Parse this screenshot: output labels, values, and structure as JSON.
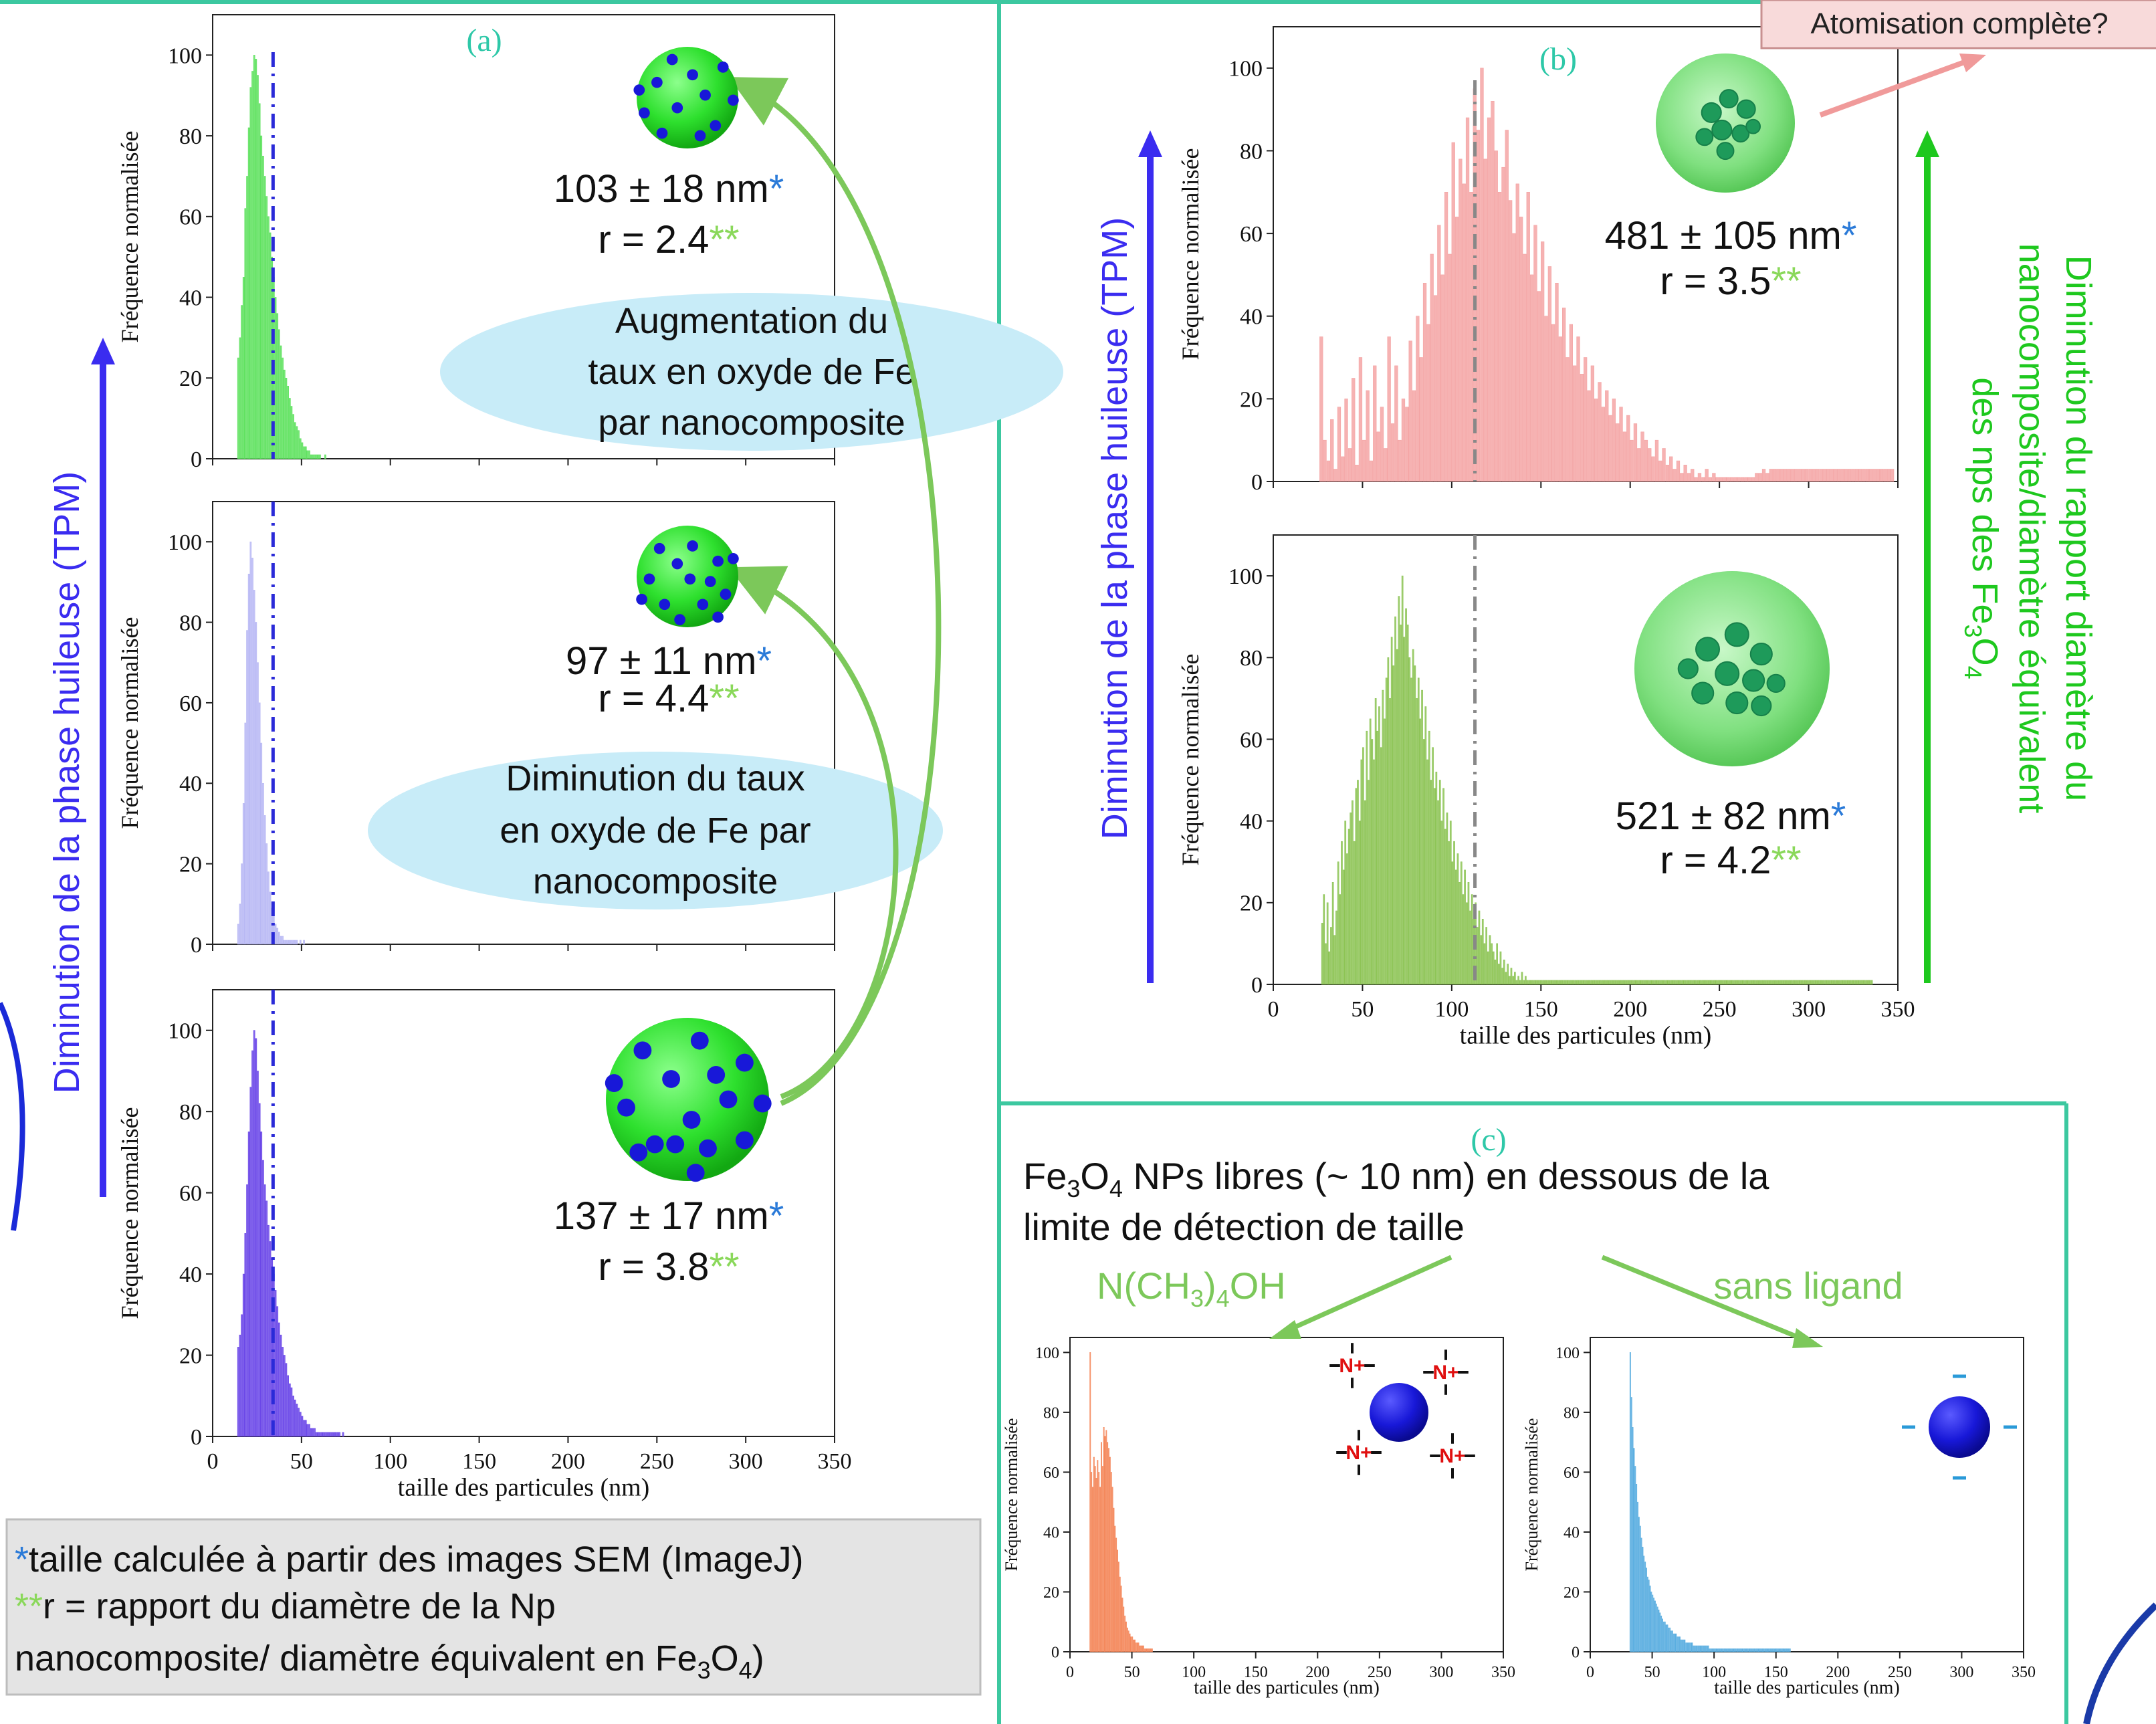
{
  "panel_labels": {
    "a": "(a)",
    "b": "(b)",
    "c": "(c)"
  },
  "side_labels": {
    "left": "Diminution de la phase huileuse (TPM)",
    "middle": "Diminution de la phase huileuse (TPM)",
    "right": [
      "Diminution du rapport diamètre du",
      "nanocomposite/diamètre équivalent",
      "des nps des Fe",
      "3",
      "O",
      "4"
    ]
  },
  "atomisation_label": "Atomisation complète?",
  "bubbles": {
    "top": [
      "Augmentation  du",
      "taux en oxyde de Fe",
      "par nanocomposite"
    ],
    "bottom": [
      "Diminution du taux",
      "en oxyde de Fe par",
      "nanocomposite"
    ]
  },
  "annotations": {
    "a1": {
      "size": "103 ± 18 nm",
      "r": "r = 2.4"
    },
    "a2": {
      "size": "97 ± 11 nm",
      "r": "r = 4.4"
    },
    "a3": {
      "size": "137 ± 17 nm",
      "r": "r = 3.8"
    },
    "b1": {
      "size": "481 ± 105 nm",
      "r": "r = 3.5"
    },
    "b2": {
      "size": "521 ± 82 nm",
      "r": "r = 4.2"
    },
    "star1": "*",
    "star2": "**"
  },
  "c_text": {
    "line1_pre": "Fe",
    "line1_sub1": "3",
    "line1_mid": "O",
    "line1_sub2": "4",
    "line1_post": " NPs libres (~ 10 nm) en dessous de la",
    "line2": "limite de détection de taille",
    "left_label": {
      "pre": "N(CH",
      "sub1": "3",
      "mid": ")",
      "sub2": "4",
      "post": "OH"
    },
    "right_label": "sans ligand"
  },
  "legend_box": {
    "line1": "taille calculée à partir des images SEM (ImageJ)",
    "line2": "r = rapport du diamètre de la Np",
    "line3_pre": "nanocomposite/ diamètre équivalent en Fe",
    "line3_sub1": "3",
    "line3_mid": "O",
    "line3_sub2": "4",
    "line3_post": ")"
  },
  "icons": [
    "nanocomposite-sphere-icon",
    "cluster-sphere-icon",
    "charged-nanoparticle-icon",
    "bare-nanoparticle-icon",
    "curved-arrow-icon"
  ],
  "colors": {
    "panel_border": "#3cc8a0",
    "green_bars": "#5fe25f",
    "lavender_bars": "#b8b8f4",
    "violet_bars": "#6a46e8",
    "pink_bars": "#f4a4a4",
    "olive_bars": "#8dc455",
    "orange_bars": "#f4875a",
    "blue_bars": "#5aaee0",
    "blue_text": "#3a2cf0",
    "green_text": "#1ec81e",
    "teal_label": "#2ec8a8",
    "bubble": "#c8ecf8",
    "legend_box": "#e4e4e4"
  },
  "chart_data": [
    {
      "id": "a1",
      "type": "bar",
      "title": "",
      "xlabel": "",
      "ylabel": "Fréquence normalisée",
      "xlim": [
        0,
        350
      ],
      "ylim": [
        0,
        110
      ],
      "xticks": [
        "0",
        "50",
        "100",
        "150",
        "200",
        "250",
        "300",
        "350"
      ],
      "xticks_shown": false,
      "yticks": [
        "0",
        "20",
        "40",
        "60",
        "80",
        "100"
      ],
      "bin_width": 1,
      "bin_start": 14,
      "values": [
        25,
        30,
        38,
        45,
        62,
        70,
        82,
        92,
        96,
        100,
        99,
        95,
        88,
        80,
        75,
        70,
        65,
        60,
        56,
        50,
        45,
        40,
        36,
        32,
        28,
        25,
        22,
        20,
        18,
        15,
        13,
        11,
        9,
        8,
        7,
        5,
        4,
        3,
        3,
        2,
        2,
        1,
        1,
        1,
        1,
        1,
        1,
        0,
        0,
        1
      ],
      "mean_line_x": 34
    },
    {
      "id": "a2",
      "type": "bar",
      "title": "",
      "xlabel": "",
      "ylabel": "Fréquence normalisée",
      "xlim": [
        0,
        350
      ],
      "ylim": [
        0,
        110
      ],
      "xticks": [
        "0",
        "50",
        "100",
        "150",
        "200",
        "250",
        "300",
        "350"
      ],
      "xticks_shown": false,
      "yticks": [
        "0",
        "20",
        "40",
        "60",
        "80",
        "100"
      ],
      "bin_width": 1,
      "bin_start": 14,
      "values": [
        5,
        10,
        20,
        35,
        55,
        78,
        92,
        100,
        96,
        88,
        80,
        70,
        60,
        50,
        40,
        32,
        25,
        18,
        13,
        9,
        7,
        5,
        4,
        3,
        2,
        2,
        1,
        1,
        1,
        1,
        1,
        1,
        1,
        1,
        0,
        1,
        0,
        1
      ],
      "mean_line_x": 34
    },
    {
      "id": "a3",
      "type": "bar",
      "title": "",
      "xlabel": "taille des particules (nm)",
      "ylabel": "Fréquence normalisée",
      "xlim": [
        0,
        350
      ],
      "ylim": [
        0,
        110
      ],
      "xticks": [
        "0",
        "50",
        "100",
        "150",
        "200",
        "250",
        "300",
        "350"
      ],
      "xticks_shown": true,
      "yticks": [
        "0",
        "20",
        "40",
        "60",
        "80",
        "100"
      ],
      "bin_width": 1,
      "bin_start": 14,
      "values": [
        22,
        25,
        30,
        40,
        50,
        62,
        75,
        86,
        95,
        100,
        98,
        90,
        82,
        75,
        68,
        62,
        58,
        52,
        48,
        44,
        40,
        36,
        32,
        28,
        25,
        22,
        20,
        18,
        15,
        13,
        12,
        10,
        9,
        8,
        7,
        6,
        5,
        4,
        4,
        3,
        3,
        2,
        2,
        2,
        1,
        1,
        1,
        1,
        1,
        1,
        1,
        1,
        1,
        1,
        1,
        1,
        1,
        1,
        0,
        1
      ],
      "mean_line_x": 34
    },
    {
      "id": "b1",
      "type": "bar",
      "title": "",
      "xlabel": "",
      "ylabel": "Fréquence normalisée",
      "xlim": [
        0,
        350
      ],
      "ylim": [
        0,
        110
      ],
      "xticks": [
        "0",
        "50",
        "100",
        "150",
        "200",
        "250",
        "300",
        "350"
      ],
      "xticks_shown": false,
      "yticks": [
        "0",
        "20",
        "40",
        "60",
        "80",
        "100"
      ],
      "bin_width": 2,
      "bin_start": 26,
      "values": [
        35,
        10,
        5,
        15,
        3,
        18,
        6,
        20,
        8,
        25,
        4,
        30,
        10,
        22,
        5,
        28,
        12,
        18,
        8,
        35,
        14,
        28,
        10,
        20,
        18,
        34,
        22,
        40,
        30,
        48,
        38,
        55,
        45,
        62,
        50,
        70,
        55,
        82,
        64,
        78,
        72,
        88,
        70,
        95,
        85,
        100,
        78,
        88,
        92,
        80,
        70,
        76,
        85,
        68,
        60,
        72,
        64,
        55,
        70,
        50,
        62,
        46,
        58,
        40,
        52,
        38,
        48,
        35,
        42,
        30,
        38,
        28,
        35,
        26,
        30,
        22,
        28,
        20,
        24,
        18,
        22,
        16,
        20,
        14,
        18,
        12,
        16,
        10,
        14,
        8,
        12,
        10,
        8,
        6,
        10,
        5,
        8,
        4,
        6,
        3,
        5,
        2,
        4,
        2,
        3,
        1,
        2,
        1,
        3,
        1,
        2,
        1,
        1,
        1,
        1,
        1,
        1,
        1,
        1,
        1,
        1,
        1,
        2,
        2,
        3,
        2,
        3,
        3,
        3,
        3,
        3,
        3,
        3,
        3,
        3,
        3,
        3,
        3,
        3,
        3,
        3,
        3,
        3,
        3,
        3,
        3,
        3,
        3,
        3,
        3,
        3,
        3,
        3,
        3,
        3,
        3,
        3,
        3,
        3,
        3,
        3
      ],
      "mean_line_x": 113
    },
    {
      "id": "b2",
      "type": "bar",
      "title": "",
      "xlabel": "taille des particules (nm)",
      "ylabel": "Fréquence normalisée",
      "xlim": [
        0,
        350
      ],
      "ylim": [
        0,
        110
      ],
      "xticks": [
        "0",
        "50",
        "100",
        "150",
        "200",
        "250",
        "300",
        "350"
      ],
      "xticks_shown": true,
      "yticks": [
        "0",
        "20",
        "40",
        "60",
        "80",
        "100"
      ],
      "bin_width": 1,
      "bin_start": 27,
      "values": [
        15,
        22,
        10,
        20,
        8,
        14,
        25,
        12,
        18,
        30,
        22,
        35,
        28,
        40,
        32,
        38,
        42,
        45,
        35,
        48,
        50,
        40,
        55,
        58,
        45,
        62,
        50,
        65,
        60,
        55,
        70,
        62,
        68,
        58,
        72,
        65,
        75,
        80,
        70,
        85,
        78,
        90,
        82,
        95,
        88,
        100,
        85,
        92,
        88,
        80,
        75,
        82,
        78,
        70,
        75,
        65,
        72,
        60,
        68,
        55,
        62,
        50,
        58,
        48,
        52,
        45,
        50,
        40,
        48,
        38,
        42,
        35,
        40,
        30,
        35,
        28,
        32,
        25,
        30,
        22,
        28,
        20,
        25,
        18,
        22,
        16,
        20,
        14,
        18,
        12,
        16,
        10,
        14,
        8,
        12,
        10,
        8,
        6,
        10,
        5,
        8,
        4,
        6,
        3,
        5,
        2,
        4,
        2,
        3,
        1,
        2,
        1,
        3,
        1,
        2,
        1,
        1,
        1,
        1,
        1,
        1,
        1,
        1,
        1,
        1,
        1,
        1,
        1,
        1,
        1,
        1,
        1,
        1,
        1,
        1,
        1,
        1,
        1,
        1,
        1,
        1,
        1,
        1,
        1,
        1,
        1,
        1,
        1,
        1,
        1,
        1,
        1,
        1,
        1,
        1,
        1,
        1,
        1,
        1,
        1,
        1,
        1,
        1,
        1,
        1,
        1,
        1,
        1,
        1,
        1,
        1,
        1,
        1,
        1,
        1,
        1,
        1,
        1,
        1,
        1,
        1,
        1,
        1,
        1,
        1,
        1,
        1,
        1,
        1,
        1,
        1,
        1,
        1,
        1,
        1,
        1,
        1,
        1,
        1,
        1,
        1,
        1,
        1,
        1,
        1,
        1,
        1,
        1,
        1,
        1,
        1,
        1,
        1,
        1,
        1,
        1,
        1,
        1,
        1,
        1,
        1,
        1,
        1,
        1,
        1,
        1,
        1,
        1,
        1,
        1,
        1,
        1,
        1,
        1,
        1,
        1,
        1,
        1,
        1,
        1,
        1,
        1,
        1,
        1,
        1,
        1,
        1,
        1,
        1,
        1,
        1,
        1,
        1,
        1,
        1,
        1,
        1,
        1,
        1,
        1,
        1,
        1,
        1,
        1,
        1,
        1,
        1,
        1,
        1,
        1,
        1,
        1,
        1,
        1,
        1,
        1,
        1,
        1,
        1,
        1,
        1,
        1,
        1,
        1,
        1,
        1,
        1,
        1,
        1,
        1,
        1,
        1,
        1,
        1,
        1,
        1,
        1,
        1,
        1,
        1,
        1,
        1,
        1,
        1,
        1,
        1,
        1,
        1,
        1
      ],
      "mean_line_x": 113
    },
    {
      "id": "c1",
      "type": "bar",
      "title": "",
      "xlabel": "taille des particules (nm)",
      "ylabel": "Fréquence normalisée",
      "xlim": [
        0,
        350
      ],
      "ylim": [
        0,
        105
      ],
      "xticks": [
        "0",
        "50",
        "100",
        "150",
        "200",
        "250",
        "300",
        "350"
      ],
      "xticks_shown": true,
      "yticks": [
        "0",
        "20",
        "40",
        "60",
        "80",
        "100"
      ],
      "bin_width": 1,
      "bin_start": 16,
      "values": [
        100,
        60,
        55,
        65,
        62,
        58,
        64,
        60,
        55,
        70,
        62,
        75,
        72,
        74,
        70,
        68,
        65,
        60,
        55,
        48,
        42,
        38,
        34,
        30,
        25,
        22,
        18,
        15,
        12,
        10,
        8,
        7,
        6,
        5,
        5,
        4,
        4,
        3,
        3,
        3,
        2,
        2,
        2,
        2,
        1,
        1,
        1,
        1,
        1,
        1,
        1
      ]
    },
    {
      "id": "c2",
      "type": "bar",
      "title": "",
      "xlabel": "taille des particules (nm)",
      "ylabel": "Fréquence normalisée",
      "xlim": [
        0,
        350
      ],
      "ylim": [
        0,
        105
      ],
      "xticks": [
        "0",
        "50",
        "100",
        "150",
        "200",
        "250",
        "300",
        "350"
      ],
      "xticks_shown": true,
      "yticks": [
        "0",
        "20",
        "40",
        "60",
        "80",
        "100"
      ],
      "bin_width": 1,
      "bin_start": 32,
      "values": [
        100,
        85,
        75,
        68,
        62,
        56,
        50,
        45,
        42,
        38,
        35,
        32,
        30,
        28,
        25,
        24,
        22,
        20,
        19,
        18,
        17,
        16,
        15,
        14,
        13,
        12,
        11,
        10,
        10,
        9,
        9,
        8,
        8,
        7,
        7,
        6,
        6,
        6,
        5,
        5,
        5,
        4,
        4,
        4,
        4,
        3,
        3,
        3,
        3,
        3,
        3,
        2,
        2,
        2,
        2,
        2,
        2,
        2,
        2,
        2,
        2,
        2,
        2,
        2,
        1,
        1,
        1,
        1,
        1,
        1,
        1,
        1,
        1,
        1,
        1,
        1,
        1,
        1,
        1,
        1,
        1,
        1,
        1,
        1,
        1,
        1,
        1,
        1,
        1,
        1,
        1,
        1,
        1,
        1,
        1,
        1,
        1,
        1,
        1,
        1,
        1,
        1,
        1,
        1,
        1,
        1,
        1,
        1,
        1,
        1,
        1,
        1,
        1,
        1,
        1,
        1,
        1,
        1,
        1,
        1,
        1,
        1,
        1,
        1,
        1,
        1,
        1,
        1,
        1,
        1
      ]
    }
  ]
}
